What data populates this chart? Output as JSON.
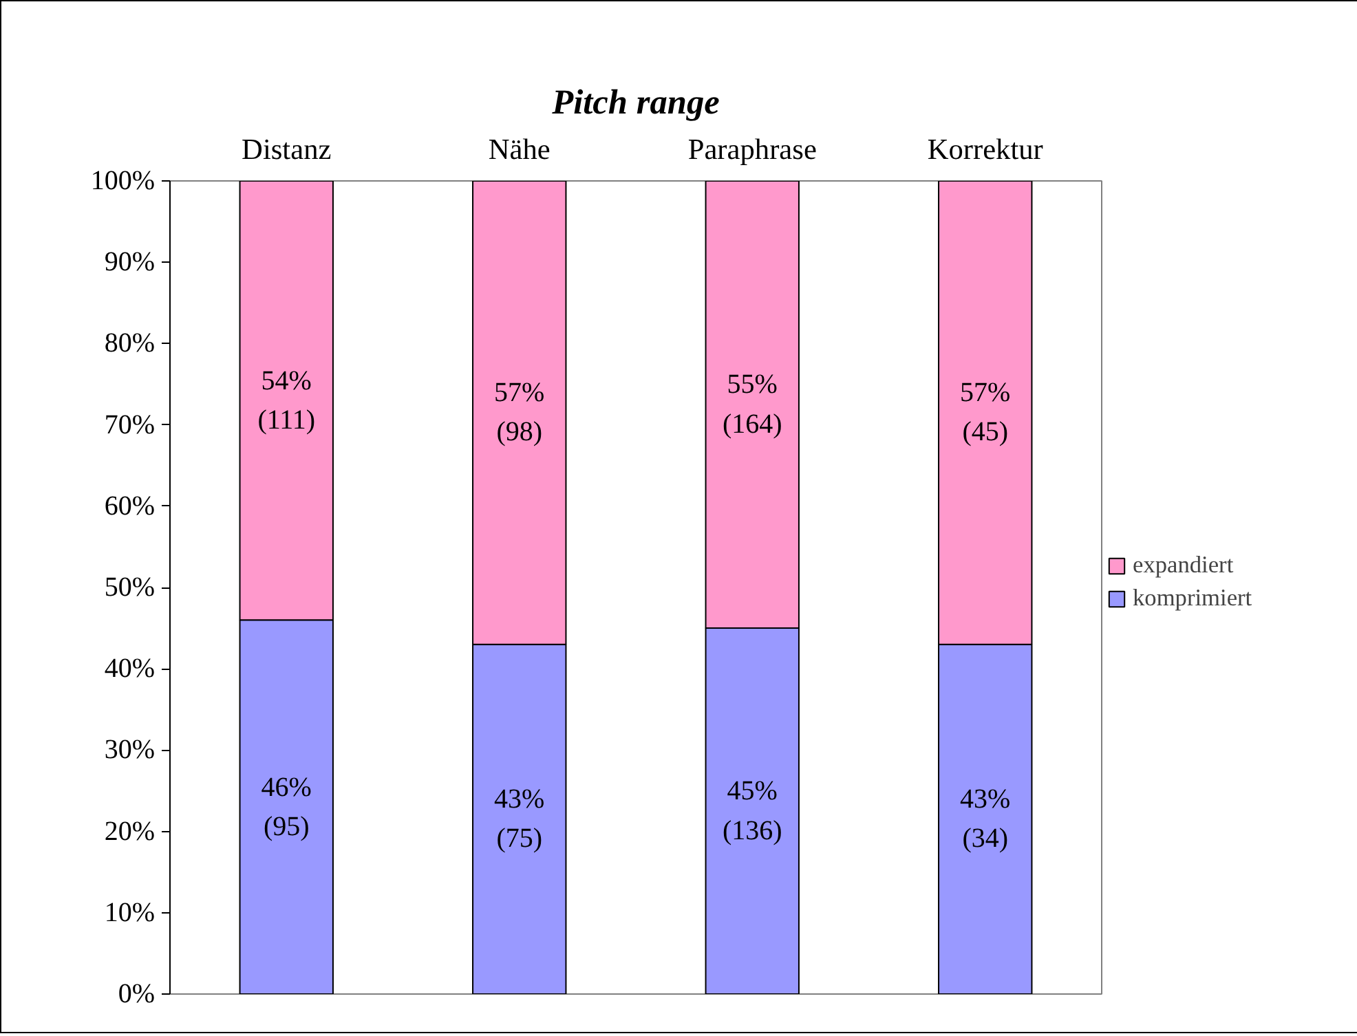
{
  "chart_data": {
    "type": "bar",
    "stacked": true,
    "title": "Pitch range",
    "categories": [
      "Distanz",
      "Nähe",
      "Paraphrase",
      "Korrektur"
    ],
    "series": [
      {
        "name": "komprimiert",
        "color": "#9999ff",
        "values": [
          46,
          43,
          45,
          43
        ],
        "value_labels": [
          "46%\n(95)",
          "43%\n(75)",
          "45%\n(136)",
          "43%\n(34)"
        ]
      },
      {
        "name": "expandiert",
        "color": "#ff99cc",
        "values": [
          54,
          57,
          55,
          57
        ],
        "value_labels": [
          "54%\n(111)",
          "57%\n(98)",
          "55%\n(164)",
          "57%\n(45)"
        ]
      }
    ],
    "ylim": [
      0,
      100
    ],
    "yticks": [
      {
        "value": 0,
        "label": "0%"
      },
      {
        "value": 10,
        "label": "10%"
      },
      {
        "value": 20,
        "label": "20%"
      },
      {
        "value": 30,
        "label": "30%"
      },
      {
        "value": 40,
        "label": "40%"
      },
      {
        "value": 50,
        "label": "50%"
      },
      {
        "value": 60,
        "label": "60%"
      },
      {
        "value": 70,
        "label": "70%"
      },
      {
        "value": 80,
        "label": "80%"
      },
      {
        "value": 90,
        "label": "90%"
      },
      {
        "value": 100,
        "label": "100%"
      }
    ],
    "grid": false,
    "legend": "right"
  }
}
